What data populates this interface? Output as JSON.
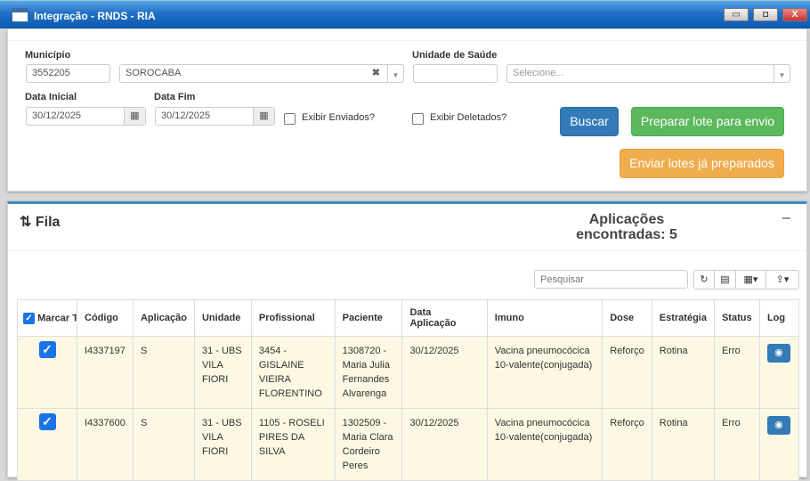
{
  "window": {
    "title": "Integração - RNDS - RIA",
    "minimize": "▭",
    "maximize": "◘",
    "close": "X"
  },
  "filters": {
    "municipio_label": "Município",
    "municipio_code": "3552205",
    "municipio_name": "SOROCABA",
    "unidade_label": "Unidade de Saúde",
    "unidade_code": "",
    "unidade_placeholder": "Selecione...",
    "data_inicial_label": "Data Inicial",
    "data_inicial": "30/12/2025",
    "data_fim_label": "Data Fim",
    "data_fim": "30/12/2025",
    "exibir_enviados": "Exibir Enviados?",
    "exibir_enviados_checked": false,
    "exibir_deletados": "Exibir Deletados?",
    "exibir_deletados_checked": false,
    "buscar": "Buscar",
    "preparar": "Preparar lote para envio",
    "enviar": "Enviar lotes já preparados",
    "colors": {
      "primary": "#337ab7",
      "success": "#5cb85c",
      "warning": "#f0ad4e"
    }
  },
  "fila": {
    "title": "Fila",
    "count_line1": "Aplicações",
    "count_line2": "encontradas: 5",
    "collapse": "−",
    "search_placeholder": "Pesquisar",
    "columns": [
      "Marcar Todos",
      "Código",
      "Aplicação",
      "Unidade",
      "Profissional",
      "Paciente",
      "Data Aplicação",
      "Imuno",
      "Dose",
      "Estratégia",
      "Status",
      "Log"
    ],
    "rows": [
      {
        "checked": true,
        "codigo": "I4337197",
        "aplicacao": "S",
        "unidade": "31 - UBS VILA FIORI",
        "profissional": "3454 - GISLAINE VIEIRA FLORENTINO",
        "paciente": "1308720 - Maria Julia Fernandes Alvarenga",
        "data": "30/12/2025",
        "imuno": "Vacina pneumocócica 10-valente(conjugada)",
        "dose": "Reforço",
        "estrategia": "Rotina",
        "status": "Erro"
      },
      {
        "checked": true,
        "codigo": "I4337600",
        "aplicacao": "S",
        "unidade": "31 - UBS VILA FIORI",
        "profissional": "1105 - ROSELI PIRES DA SILVA",
        "paciente": "1302509 - Maria Clara Cordeiro Peres",
        "data": "30/12/2025",
        "imuno": "Vacina pneumocócica 10-valente(conjugada)",
        "dose": "Reforço",
        "estrategia": "Rotina",
        "status": "Erro"
      }
    ]
  }
}
